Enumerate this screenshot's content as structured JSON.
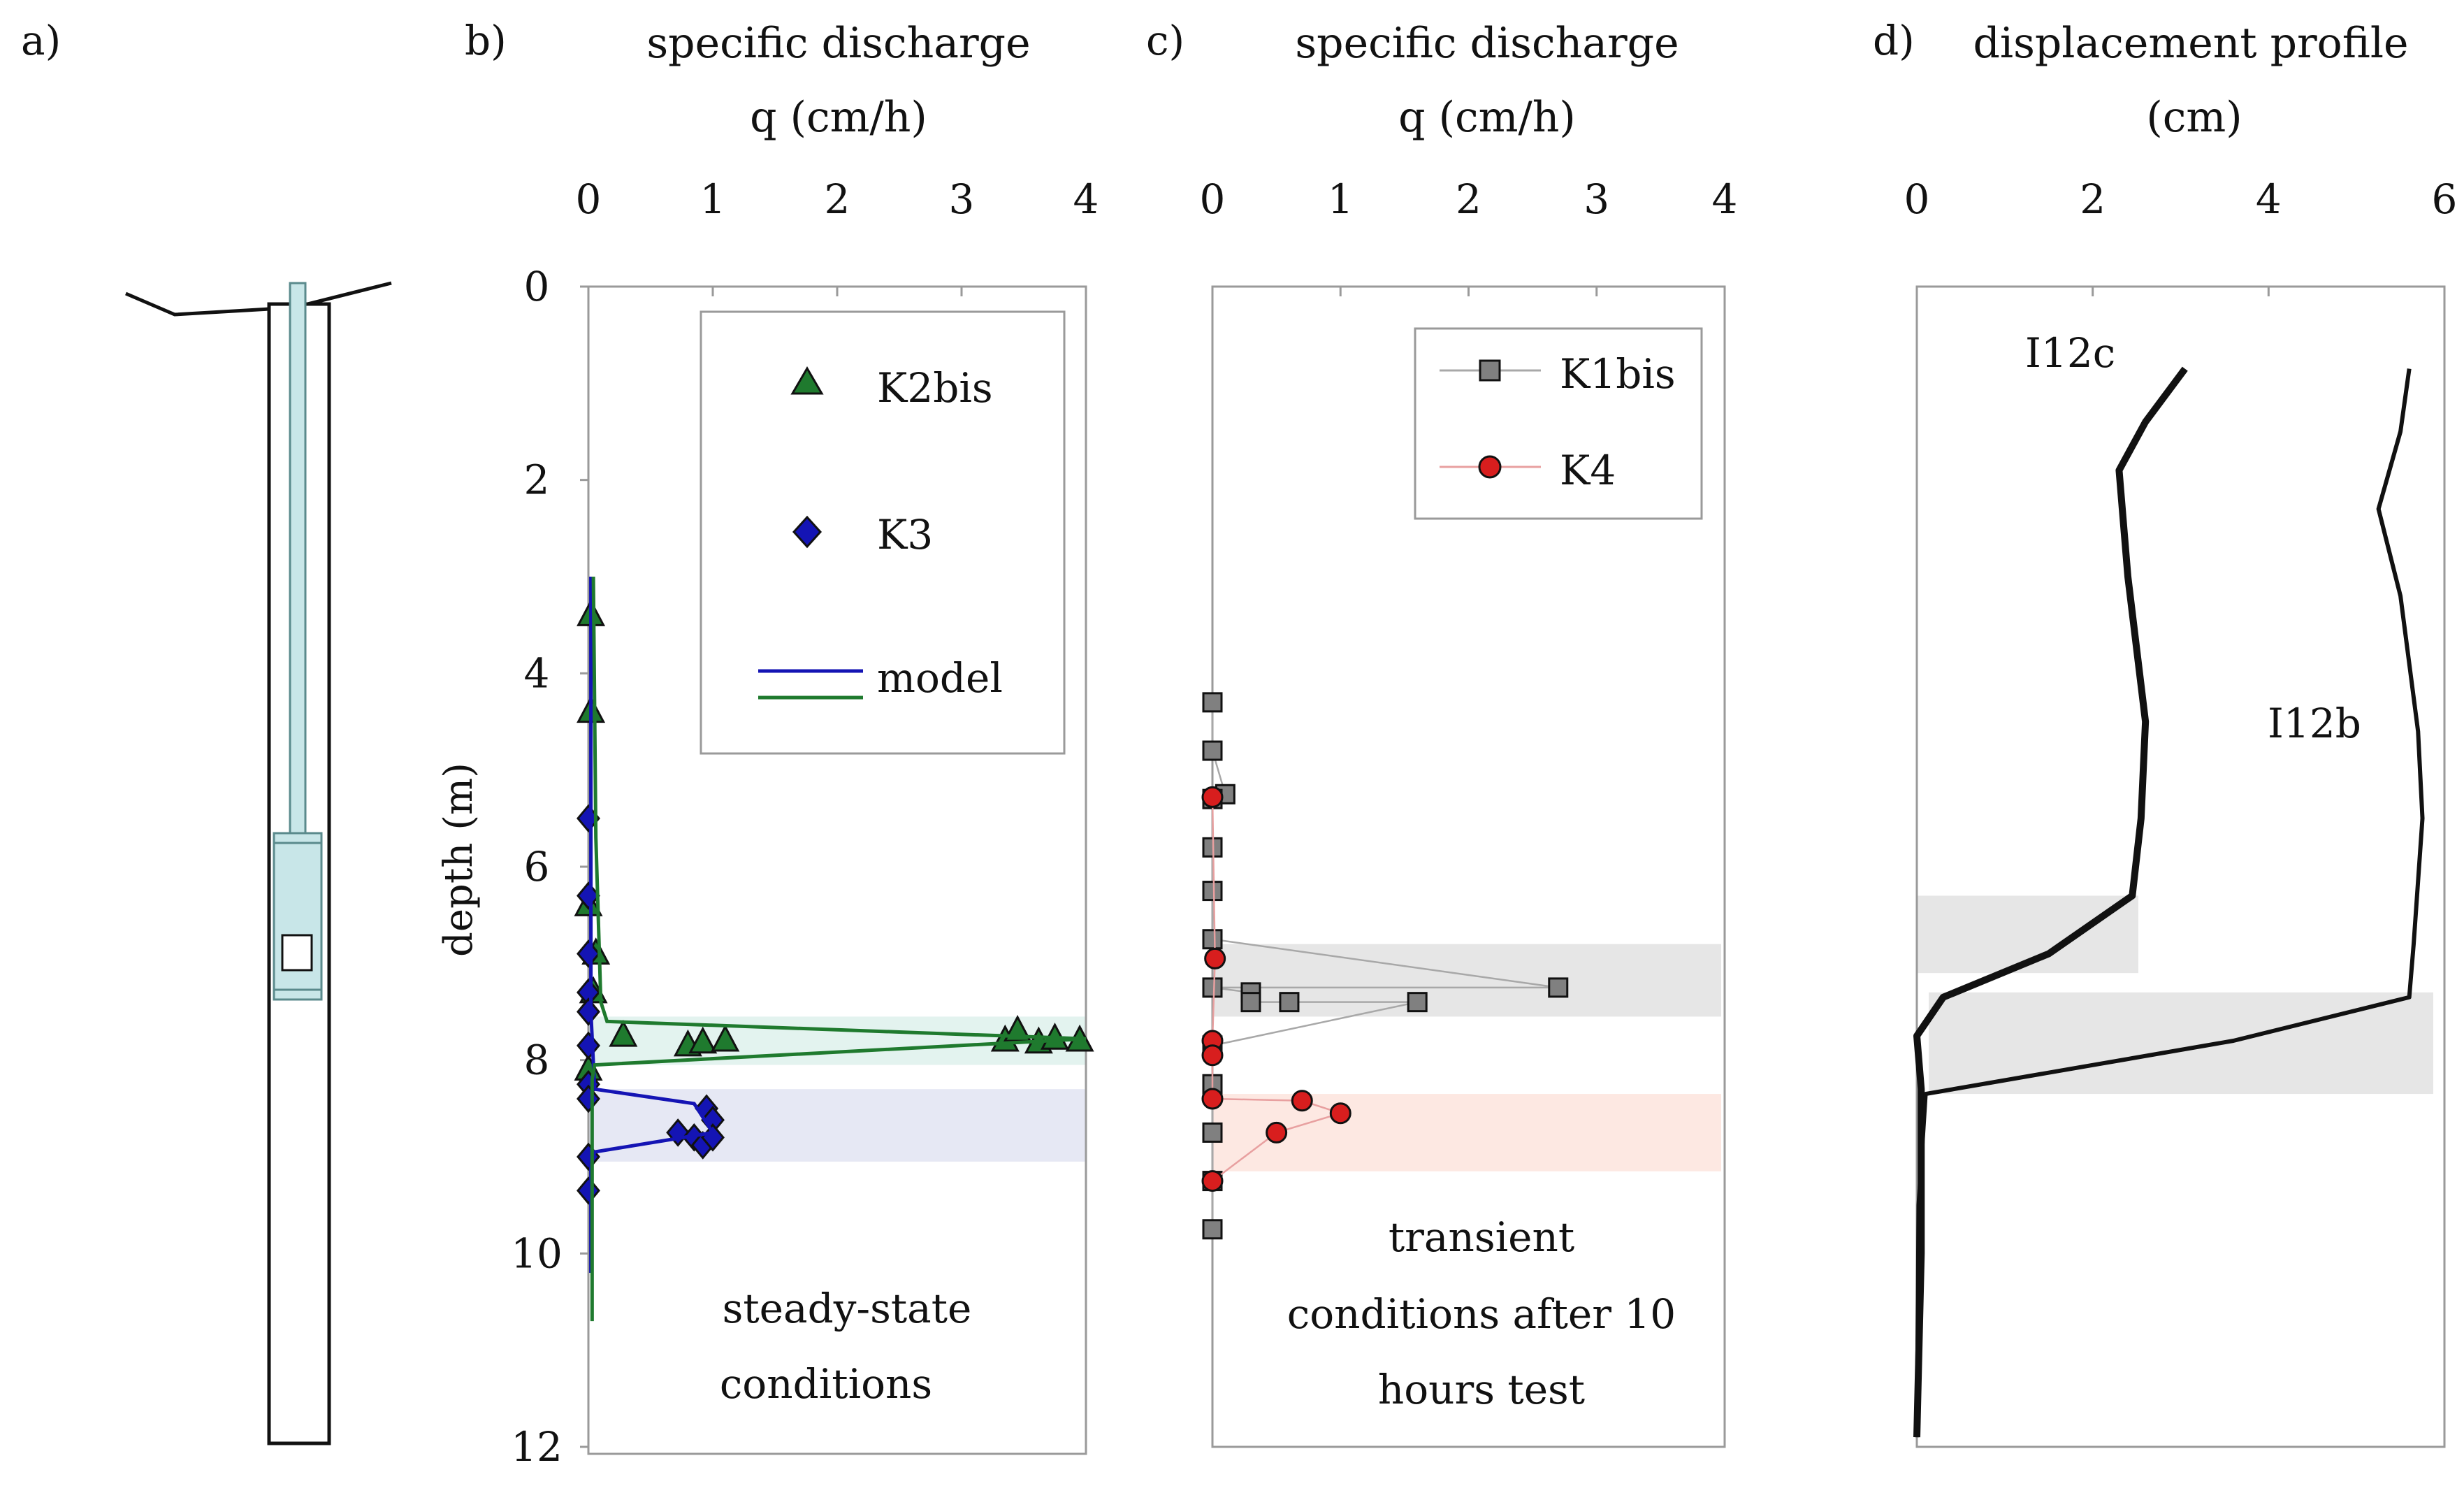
{
  "colors": {
    "k2bis": "#1f7a2e",
    "k3": "#1414b4",
    "k1bis": "#808080",
    "k4": "#d81e1e",
    "band_teal": "#e3f3ef",
    "band_blue": "#e6e8f4",
    "band_gray": "#e6e6e6",
    "band_pink": "#fde8e2",
    "tube_fill": "#c8e6e8"
  },
  "panel_a": {
    "label": "a)"
  },
  "chart_data": [
    {
      "panel_label": "b)",
      "type": "scatter",
      "title_line1": "specific discharge",
      "title_line2": "q (cm/h)",
      "ylabel": "depth (m)",
      "xlim": [
        0,
        4
      ],
      "ylim": [
        0,
        12
      ],
      "x_ticks": [
        "0",
        "1",
        "2",
        "3",
        "4"
      ],
      "y_ticks": [
        "0",
        "2",
        "4",
        "6",
        "8",
        "10",
        "12"
      ],
      "bands": [
        {
          "y0": 7.55,
          "y1": 8.05,
          "color": "band_teal"
        },
        {
          "y0": 8.3,
          "y1": 9.05,
          "color": "band_blue"
        }
      ],
      "series": [
        {
          "name": "K2bis",
          "marker": "triangle",
          "color": "k2bis",
          "points": [
            [
              0.02,
              3.4
            ],
            [
              0.02,
              4.4
            ],
            [
              0.0,
              6.4
            ],
            [
              0.06,
              6.9
            ],
            [
              0.04,
              7.3
            ],
            [
              0.28,
              7.75
            ],
            [
              0.8,
              7.85
            ],
            [
              0.92,
              7.82
            ],
            [
              1.1,
              7.8
            ],
            [
              3.35,
              7.8
            ],
            [
              3.45,
              7.7
            ],
            [
              3.62,
              7.82
            ],
            [
              3.75,
              7.78
            ],
            [
              3.95,
              7.8
            ],
            [
              0.0,
              8.1
            ]
          ]
        },
        {
          "name": "K3",
          "marker": "diamond",
          "color": "k3",
          "points": [
            [
              0.0,
              5.5
            ],
            [
              0.0,
              6.3
            ],
            [
              0.0,
              6.9
            ],
            [
              0.0,
              7.3
            ],
            [
              0.0,
              7.5
            ],
            [
              0.0,
              7.85
            ],
            [
              0.0,
              8.25
            ],
            [
              0.0,
              8.4
            ],
            [
              0.95,
              8.5
            ],
            [
              1.0,
              8.62
            ],
            [
              0.72,
              8.75
            ],
            [
              0.85,
              8.8
            ],
            [
              0.92,
              8.88
            ],
            [
              1.0,
              8.8
            ],
            [
              0.0,
              9.0
            ],
            [
              0.0,
              9.35
            ]
          ]
        },
        {
          "name": "model_K3",
          "line_only": true,
          "color": "k3",
          "points": [
            [
              0.02,
              3.0
            ],
            [
              0.02,
              7.5
            ],
            [
              0.05,
              8.3
            ],
            [
              0.85,
              8.45
            ],
            [
              1.0,
              8.75
            ],
            [
              0.05,
              8.95
            ],
            [
              0.02,
              9.1
            ],
            [
              0.02,
              10.2
            ]
          ]
        },
        {
          "name": "model_K2bis",
          "line_only": true,
          "color": "k2bis",
          "points": [
            [
              0.04,
              3.0
            ],
            [
              0.06,
              5.7
            ],
            [
              0.1,
              7.4
            ],
            [
              0.15,
              7.6
            ],
            [
              4.0,
              7.78
            ],
            [
              0.05,
              8.05
            ],
            [
              0.03,
              8.2
            ],
            [
              0.03,
              10.7
            ]
          ]
        }
      ],
      "legend": {
        "placement": "top-right",
        "entries": [
          "K2bis",
          "K3",
          "model"
        ]
      },
      "annotation": [
        "steady-state",
        "conditions"
      ]
    },
    {
      "panel_label": "c)",
      "type": "line",
      "title_line1": "specific discharge",
      "title_line2": "q (cm/h)",
      "xlim": [
        0,
        4
      ],
      "ylim": [
        0,
        12
      ],
      "x_ticks": [
        "0",
        "1",
        "2",
        "3",
        "4"
      ],
      "bands": [
        {
          "y0": 6.8,
          "y1": 7.55,
          "color": "band_gray"
        },
        {
          "y0": 8.35,
          "y1": 9.15,
          "color": "band_pink"
        }
      ],
      "series": [
        {
          "name": "K1bis",
          "marker": "square",
          "color": "k1bis",
          "points": [
            [
              0.0,
              4.3
            ],
            [
              0.0,
              4.8
            ],
            [
              0.1,
              5.25
            ],
            [
              0.0,
              5.3
            ],
            [
              0.0,
              5.8
            ],
            [
              0.0,
              6.25
            ],
            [
              0.0,
              6.75
            ],
            [
              2.7,
              7.25
            ],
            [
              0.0,
              7.25
            ],
            [
              0.3,
              7.3
            ],
            [
              0.3,
              7.4
            ],
            [
              0.6,
              7.4
            ],
            [
              1.6,
              7.4
            ],
            [
              0.0,
              7.85
            ],
            [
              0.0,
              8.25
            ],
            [
              0.0,
              8.75
            ],
            [
              0.0,
              9.25
            ],
            [
              0.0,
              9.75
            ]
          ]
        },
        {
          "name": "K4",
          "marker": "circle",
          "color": "k4",
          "points": [
            [
              0.0,
              5.28
            ],
            [
              0.02,
              6.95
            ],
            [
              0.0,
              7.8
            ],
            [
              0.0,
              7.95
            ],
            [
              0.0,
              8.4
            ],
            [
              0.7,
              8.42
            ],
            [
              1.0,
              8.55
            ],
            [
              0.5,
              8.75
            ],
            [
              0.0,
              9.25
            ]
          ]
        }
      ],
      "legend": {
        "placement": "top-right",
        "entries": [
          "K1bis",
          "K4"
        ]
      },
      "annotation": [
        "transient",
        "conditions after 10",
        "hours test"
      ]
    },
    {
      "panel_label": "d)",
      "type": "line",
      "title_line1": "displacement profile",
      "title_line2": "(cm)",
      "xlim": [
        0,
        6
      ],
      "ylim": [
        0,
        12
      ],
      "x_ticks": [
        "0",
        "2",
        "4",
        "6"
      ],
      "bands": [
        {
          "y0": 6.3,
          "y1": 7.1,
          "color": "band_gray"
        },
        {
          "y0": 7.3,
          "y1": 8.35,
          "color": "band_gray"
        }
      ],
      "series": [
        {
          "name": "I12c",
          "color": "#111111",
          "thick": true,
          "points": [
            [
              3.05,
              0.85
            ],
            [
              2.6,
              1.4
            ],
            [
              2.3,
              1.9
            ],
            [
              2.4,
              3.0
            ],
            [
              2.6,
              4.5
            ],
            [
              2.55,
              5.5
            ],
            [
              2.45,
              6.3
            ],
            [
              1.5,
              6.9
            ],
            [
              0.3,
              7.35
            ],
            [
              0.0,
              7.75
            ],
            [
              0.05,
              8.3
            ],
            [
              0.05,
              10.0
            ],
            [
              0.0,
              11.9
            ]
          ]
        },
        {
          "name": "I12b",
          "color": "#111111",
          "thick": false,
          "points": [
            [
              5.6,
              0.85
            ],
            [
              5.5,
              1.5
            ],
            [
              5.25,
              2.3
            ],
            [
              5.5,
              3.2
            ],
            [
              5.7,
              4.6
            ],
            [
              5.75,
              5.5
            ],
            [
              5.65,
              6.8
            ],
            [
              5.6,
              7.35
            ],
            [
              3.6,
              7.8
            ],
            [
              0.1,
              8.35
            ],
            [
              0.02,
              9.5
            ],
            [
              0.0,
              11.9
            ]
          ]
        }
      ],
      "curve_labels": [
        "I12c",
        "I12b"
      ]
    }
  ]
}
